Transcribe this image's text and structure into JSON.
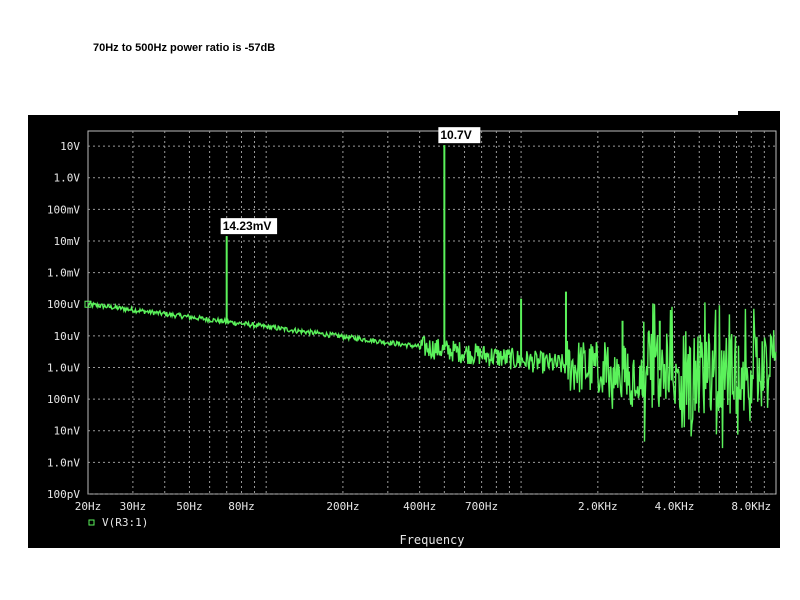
{
  "caption": "70Hz to 500Hz power ratio is -57dB",
  "colors": {
    "background": "#000000",
    "grid": "#9a9a9a",
    "trace": "#5bf25b",
    "axis_text": "#e6e6e6",
    "label_bg": "#ffffff"
  },
  "chart_data": {
    "type": "line",
    "title": "",
    "xlabel": "Frequency",
    "ylabel": "",
    "xscale": "log",
    "yscale": "log",
    "xlim": [
      20,
      10000
    ],
    "ylim": [
      1e-10,
      30
    ],
    "grid": true,
    "legend_position": "bottom-left",
    "x_ticks": [
      {
        "label": "20Hz",
        "value": 20
      },
      {
        "label": "30Hz",
        "value": 30
      },
      {
        "label": "50Hz",
        "value": 50
      },
      {
        "label": "80Hz",
        "value": 80
      },
      {
        "label": "200Hz",
        "value": 200
      },
      {
        "label": "400Hz",
        "value": 400
      },
      {
        "label": "700Hz",
        "value": 700
      },
      {
        "label": "2.0KHz",
        "value": 2000
      },
      {
        "label": "4.0KHz",
        "value": 4000
      },
      {
        "label": "8.0KHz",
        "value": 8000
      },
      {
        "label": "",
        "value": 10000
      }
    ],
    "y_ticks": [
      {
        "label": "10V",
        "value": 10
      },
      {
        "label": "1.0V",
        "value": 1
      },
      {
        "label": "100mV",
        "value": 0.1
      },
      {
        "label": "10mV",
        "value": 0.01
      },
      {
        "label": "1.0mV",
        "value": 0.001
      },
      {
        "label": "100uV",
        "value": 0.0001
      },
      {
        "label": "10uV",
        "value": 1e-05
      },
      {
        "label": "1.0uV",
        "value": 1e-06
      },
      {
        "label": "100nV",
        "value": 1e-07
      },
      {
        "label": "10nV",
        "value": 1e-08
      },
      {
        "label": "1.0nV",
        "value": 1e-09
      },
      {
        "label": "100pV",
        "value": 1e-10
      }
    ],
    "series": [
      {
        "name": "V(R3:1)",
        "marker": "square",
        "baseline": [
          [
            20,
            0.0001
          ],
          [
            70,
            2.8e-05
          ],
          [
            200,
            9.5e-06
          ],
          [
            500,
            3.6e-06
          ],
          [
            1000,
            1.7e-06
          ],
          [
            2000,
            9e-07
          ],
          [
            4000,
            8e-07
          ],
          [
            10000,
            6e-07
          ]
        ],
        "peaks": [
          {
            "x": 70,
            "y": 0.01423
          },
          {
            "x": 500,
            "y": 10.7
          },
          {
            "x": 1000,
            "y": 0.00015
          },
          {
            "x": 1500,
            "y": 0.00025
          },
          {
            "x": 2500,
            "y": 3e-05
          },
          {
            "x": 3500,
            "y": 3e-05
          }
        ]
      }
    ],
    "annotations": [
      {
        "text": "14.23mV",
        "x": 70,
        "y": 0.01423
      },
      {
        "text": "10.7V",
        "x": 500,
        "y": 10.7
      }
    ]
  }
}
